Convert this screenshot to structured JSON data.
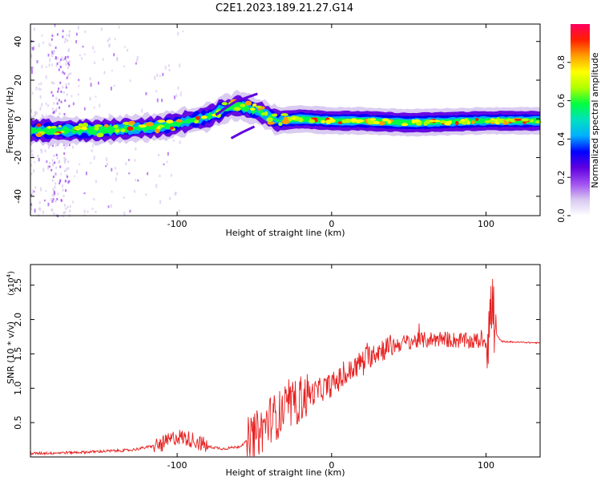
{
  "title": "C2E1.2023.189.21.27.G14",
  "chart_data": [
    {
      "type": "heatmap",
      "name": "spectrogram",
      "xlabel": "Height of straight line (km)",
      "ylabel": "Frequency (Hz)",
      "xlim": [
        -195,
        135
      ],
      "ylim": [
        -50,
        49
      ],
      "xticks": [
        -100,
        0,
        100
      ],
      "xtick_labels": [
        "-100",
        "0",
        "100"
      ],
      "yticks": [
        -40,
        -20,
        0,
        20,
        40
      ],
      "ytick_labels": [
        "-40",
        "-20",
        "0",
        "20",
        "40"
      ],
      "centerline": {
        "x": [
          -195,
          -150,
          -110,
          -80,
          -70,
          -60,
          -45,
          -35,
          -20,
          0,
          20,
          50,
          100,
          135
        ],
        "y": [
          -6,
          -6,
          -4,
          1,
          5,
          7,
          3,
          -1,
          0,
          -1,
          -1,
          -2,
          -1,
          -1
        ]
      },
      "colorbar": {
        "label": "Normalized spectral amplitude",
        "range": [
          0.0,
          1.0
        ],
        "ticks": [
          0.0,
          0.2,
          0.4,
          0.6,
          0.8
        ],
        "tick_labels": [
          "0.0",
          "0.2",
          "0.4",
          "0.6",
          "0.8"
        ],
        "colormap": [
          "#ffffff",
          "#d8c8f0",
          "#a050f0",
          "#6000e0",
          "#0000ff",
          "#00b0ff",
          "#00e0c0",
          "#00ff40",
          "#b0ff00",
          "#ffff00",
          "#ffa000",
          "#ff2000",
          "#ff0060"
        ]
      }
    },
    {
      "type": "line",
      "name": "snr",
      "xlabel": "Height of straight line (km)",
      "ylabel": "SNR (10 * v/v)",
      "yscale_label": "(x10",
      "yscale_exp": "4",
      "yscale_close": ")",
      "xlim": [
        -195,
        135
      ],
      "ylim": [
        0.0,
        2.8
      ],
      "xticks": [
        -100,
        0,
        100
      ],
      "xtick_labels": [
        "-100",
        "0",
        "100"
      ],
      "yticks": [
        0.5,
        1.0,
        1.5,
        2.0,
        2.5
      ],
      "ytick_labels": [
        "0.5",
        "1.0",
        "1.5",
        "2.0",
        "2.5"
      ],
      "series_color": "#e82020",
      "envelope": {
        "x": [
          -195,
          -160,
          -130,
          -110,
          -100,
          -90,
          -80,
          -70,
          -60,
          -50,
          -45,
          -40,
          -35,
          -30,
          -25,
          -20,
          -10,
          0,
          10,
          20,
          30,
          40,
          50,
          60,
          70,
          80,
          90,
          100,
          104,
          106,
          110,
          120,
          135
        ],
        "y": [
          0.05,
          0.07,
          0.1,
          0.18,
          0.3,
          0.25,
          0.15,
          0.12,
          0.15,
          0.3,
          0.4,
          0.55,
          0.6,
          0.7,
          0.75,
          0.85,
          0.95,
          1.05,
          1.2,
          1.4,
          1.55,
          1.62,
          1.68,
          1.7,
          1.72,
          1.7,
          1.68,
          1.7,
          2.2,
          1.8,
          1.68,
          1.67,
          1.66
        ]
      }
    }
  ]
}
